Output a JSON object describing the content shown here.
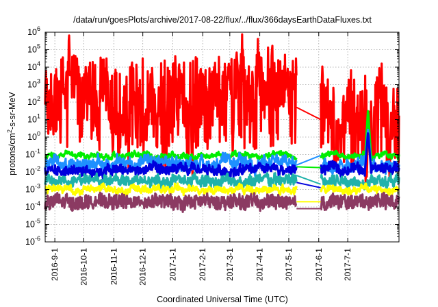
{
  "chart_data": {
    "type": "line",
    "title": "/data/run/goesPlots/archive/2017-08-22/flux/../flux/366daysEarthDataFluxes.txt",
    "xlabel": "Coordinated Universal Time (UTC)",
    "ylabel": "protons/cm²-s-sr-MeV",
    "ylabel_base": "protons/cm",
    "ylabel_sup": "2",
    "ylabel_rest": "-s-sr-MeV",
    "y_scale": "log",
    "ylim_exp": [
      -6,
      6
    ],
    "y_ticks": [
      {
        "base": "10",
        "exp": "-6"
      },
      {
        "base": "10",
        "exp": "-5"
      },
      {
        "base": "10",
        "exp": "-4"
      },
      {
        "base": "10",
        "exp": "-3"
      },
      {
        "base": "10",
        "exp": "-2"
      },
      {
        "base": "10",
        "exp": "-1"
      },
      {
        "base": "10",
        "exp": "0"
      },
      {
        "base": "10",
        "exp": "1"
      },
      {
        "base": "10",
        "exp": "2"
      },
      {
        "base": "10",
        "exp": "3"
      },
      {
        "base": "10",
        "exp": "4"
      },
      {
        "base": "10",
        "exp": "5"
      },
      {
        "base": "10",
        "exp": "6"
      }
    ],
    "xlim": [
      "2016-08-22",
      "2017-08-23"
    ],
    "x_ticks": [
      {
        "label": "2016-9-1",
        "date": "2016-09-01"
      },
      {
        "label": "2016-10-1",
        "date": "2016-10-01"
      },
      {
        "label": "2016-11-1",
        "date": "2016-11-01"
      },
      {
        "label": "2016-12-1",
        "date": "2016-12-01"
      },
      {
        "label": "2017-1-1",
        "date": "2017-01-01"
      },
      {
        "label": "2017-2-1",
        "date": "2017-02-01"
      },
      {
        "label": "2017-3-1",
        "date": "2017-03-01"
      },
      {
        "label": "2017-4-1",
        "date": "2017-04-01"
      },
      {
        "label": "2017-5-1",
        "date": "2017-05-01"
      },
      {
        "label": "2017-6-1",
        "date": "2017-06-01"
      },
      {
        "label": "2017-7-1",
        "date": "2017-07-01"
      }
    ],
    "grid": true,
    "data_gap": [
      "2017-05-09",
      "2017-06-03"
    ],
    "series": [
      {
        "color": "#ff0000",
        "base_log": 2.0,
        "spread": 1.2,
        "jump": 0.7,
        "after_gap_log": 1.0,
        "spike": null
      },
      {
        "color": "#00ee00",
        "base_log": -1.05,
        "spread": 0.09,
        "jump": 0.06,
        "after_gap_log": -1.05,
        "spike": {
          "date": "2017-07-22",
          "log": 1.6
        }
      },
      {
        "color": "#1e90ff",
        "base_log": -1.5,
        "spread": 0.25,
        "jump": 0.1,
        "after_gap_log": -1.5,
        "spike": {
          "date": "2017-07-22",
          "log": 0.5
        }
      },
      {
        "color": "#0000dd",
        "base_log": -1.9,
        "spread": 0.22,
        "jump": 0.08,
        "after_gap_log": -1.8,
        "spike": {
          "date": "2017-07-22",
          "log": 0.3
        }
      },
      {
        "color": "#20b2aa",
        "base_log": -2.5,
        "spread": 0.25,
        "jump": 0.08,
        "after_gap_log": -2.5,
        "spike": null
      },
      {
        "color": "#ffff00",
        "base_log": -3.0,
        "spread": 0.15,
        "jump": 0.06,
        "after_gap_log": -3.0,
        "spike": null
      },
      {
        "color": "#8b3a62",
        "base_log": -3.7,
        "spread": 0.38,
        "jump": 0.05,
        "after_gap_log": -3.7,
        "spike": null
      }
    ],
    "gap_connectors": [
      {
        "color": "#ff0000",
        "from_log": 1.7,
        "to_log": 1.0
      },
      {
        "color": "#00ee00",
        "from_log": -1.7,
        "to_log": -1.75
      },
      {
        "color": "#1e90ff",
        "from_log": -1.6,
        "to_log": -1.05
      },
      {
        "color": "#0000dd",
        "from_log": -2.6,
        "to_log": -2.9
      },
      {
        "color": "#20b2aa",
        "from_log": -2.2,
        "to_log": -2.7
      },
      {
        "color": "#ffff00",
        "from_log": -3.7,
        "to_log": -3.7
      },
      {
        "color": "#8b3a62",
        "from_log": -4.1,
        "to_log": -4.1
      }
    ]
  }
}
